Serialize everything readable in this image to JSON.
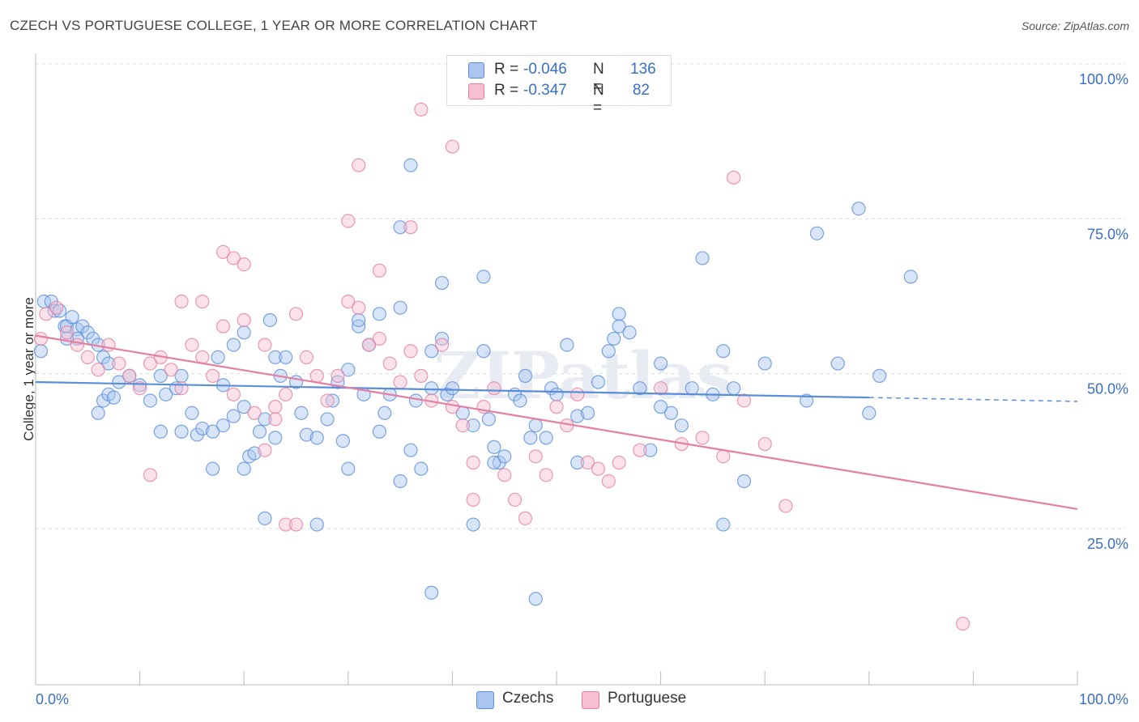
{
  "title": "CZECH VS PORTUGUESE COLLEGE, 1 YEAR OR MORE CORRELATION CHART",
  "source": "Source: ZipAtlas.com",
  "watermark": "ZIPatlas",
  "legend": {
    "r_label": "R =",
    "n_label": "N =",
    "rows": [
      {
        "r": "-0.046",
        "n": "136",
        "fill": "#a9c5f0",
        "stroke": "#5b8ed8"
      },
      {
        "r": "-0.347",
        "n": "82",
        "fill": "#f7bfd1",
        "stroke": "#e57fa2"
      }
    ]
  },
  "chart_data": {
    "type": "scatter",
    "title": "CZECH VS PORTUGUESE COLLEGE, 1 YEAR OR MORE CORRELATION CHART",
    "xlabel": "",
    "ylabel": "College, 1 year or more",
    "xlim": [
      0,
      100
    ],
    "ylim": [
      5,
      100
    ],
    "x_tick_labels": [
      "0.0%",
      "100.0%"
    ],
    "y_tick_labels": [
      "100.0%",
      "75.0%",
      "50.0%",
      "25.0%"
    ],
    "y_ticks": [
      100,
      75,
      50,
      25
    ],
    "grid": true,
    "legend_position": "top-center",
    "series": [
      {
        "name": "Czechs",
        "color": "#5b8ed8",
        "fill": "#a9c5f0",
        "trend": {
          "x": [
            0,
            80
          ],
          "y": [
            51.0,
            48.5
          ],
          "dashed_extension_to_x": 100
        },
        "points": [
          [
            0.5,
            56
          ],
          [
            0.8,
            64
          ],
          [
            1.5,
            64
          ],
          [
            1.8,
            62.5
          ],
          [
            2.3,
            62.5
          ],
          [
            2.8,
            60
          ],
          [
            3,
            60
          ],
          [
            3.5,
            61.5
          ],
          [
            4,
            59.5
          ],
          [
            4.5,
            60
          ],
          [
            5,
            59
          ],
          [
            5.5,
            58
          ],
          [
            6,
            57
          ],
          [
            6.5,
            55
          ],
          [
            7,
            54
          ],
          [
            4,
            58
          ],
          [
            3,
            58
          ],
          [
            6,
            46
          ],
          [
            6.5,
            48
          ],
          [
            7,
            49
          ],
          [
            7.5,
            48.5
          ],
          [
            8,
            51
          ],
          [
            9,
            52
          ],
          [
            10,
            50.5
          ],
          [
            11,
            48
          ],
          [
            12,
            43
          ],
          [
            12,
            52
          ],
          [
            12.5,
            49
          ],
          [
            13.5,
            50
          ],
          [
            14,
            52
          ],
          [
            15,
            46
          ],
          [
            15.5,
            42.5
          ],
          [
            16,
            43.5
          ],
          [
            17,
            43
          ],
          [
            17.5,
            55
          ],
          [
            18,
            50.5
          ],
          [
            18,
            44
          ],
          [
            19,
            45.5
          ],
          [
            19,
            57
          ],
          [
            20,
            47
          ],
          [
            20,
            59
          ],
          [
            20,
            37
          ],
          [
            20.5,
            39
          ],
          [
            21,
            39.5
          ],
          [
            21.5,
            43
          ],
          [
            22,
            45
          ],
          [
            22.5,
            61
          ],
          [
            23,
            55
          ],
          [
            23,
            42
          ],
          [
            23.5,
            52
          ],
          [
            24,
            55
          ],
          [
            25,
            51
          ],
          [
            25.5,
            46
          ],
          [
            26,
            42.5
          ],
          [
            27,
            42
          ],
          [
            28,
            45
          ],
          [
            28.5,
            48
          ],
          [
            29,
            51
          ],
          [
            29.5,
            41.5
          ],
          [
            30,
            53
          ],
          [
            31,
            60
          ],
          [
            31.5,
            49
          ],
          [
            32,
            57
          ],
          [
            33,
            43
          ],
          [
            33.5,
            46
          ],
          [
            34,
            49
          ],
          [
            35,
            63
          ],
          [
            35,
            35
          ],
          [
            36,
            40
          ],
          [
            36.5,
            48
          ],
          [
            37,
            37
          ],
          [
            38,
            50
          ],
          [
            38,
            56
          ],
          [
            39,
            58
          ],
          [
            39.5,
            49
          ],
          [
            40,
            50
          ],
          [
            41,
            46
          ],
          [
            42,
            44
          ],
          [
            43,
            56
          ],
          [
            43.5,
            45
          ],
          [
            44,
            40.5
          ],
          [
            44.5,
            38
          ],
          [
            45,
            39
          ],
          [
            46,
            49
          ],
          [
            46.5,
            48
          ],
          [
            47,
            52
          ],
          [
            47.5,
            42
          ],
          [
            48,
            44
          ],
          [
            49,
            42
          ],
          [
            49.5,
            50
          ],
          [
            50,
            49
          ],
          [
            51,
            57
          ],
          [
            52,
            45.5
          ],
          [
            53,
            46
          ],
          [
            54,
            51
          ],
          [
            55,
            56
          ],
          [
            55.5,
            58
          ],
          [
            56,
            60
          ],
          [
            57,
            59
          ],
          [
            58,
            50
          ],
          [
            59,
            40
          ],
          [
            60,
            54
          ],
          [
            61,
            46
          ],
          [
            62,
            44
          ],
          [
            63,
            50
          ],
          [
            64,
            71
          ],
          [
            65,
            49
          ],
          [
            66,
            56
          ],
          [
            67,
            50
          ],
          [
            68,
            35
          ],
          [
            70,
            54
          ],
          [
            74,
            48
          ],
          [
            75,
            75
          ],
          [
            77,
            54
          ],
          [
            79,
            79
          ],
          [
            80,
            46
          ],
          [
            81,
            52
          ],
          [
            84,
            68
          ],
          [
            14,
            43
          ],
          [
            17,
            37
          ],
          [
            22,
            29
          ],
          [
            27,
            28
          ],
          [
            30,
            37
          ],
          [
            31,
            61
          ],
          [
            33,
            62
          ],
          [
            36,
            86
          ],
          [
            39,
            67
          ],
          [
            42,
            28
          ],
          [
            43,
            68
          ],
          [
            48,
            16
          ],
          [
            38,
            17
          ],
          [
            35,
            76
          ],
          [
            60,
            47
          ],
          [
            66,
            28
          ],
          [
            44,
            38
          ],
          [
            52,
            38
          ],
          [
            56,
            62
          ]
        ]
      },
      {
        "name": "Portuguese",
        "color": "#e57fa2",
        "fill": "#f7bfd1",
        "trend": {
          "x": [
            0,
            100
          ],
          "y": [
            58.5,
            30.5
          ]
        },
        "points": [
          [
            0.5,
            58
          ],
          [
            1,
            62
          ],
          [
            2,
            63
          ],
          [
            3,
            59
          ],
          [
            4,
            57
          ],
          [
            5,
            55
          ],
          [
            6,
            53
          ],
          [
            7,
            57
          ],
          [
            8,
            54
          ],
          [
            9,
            52
          ],
          [
            10,
            50
          ],
          [
            11,
            54
          ],
          [
            12,
            55
          ],
          [
            13,
            53
          ],
          [
            14,
            50
          ],
          [
            15,
            57
          ],
          [
            16,
            55
          ],
          [
            17,
            52
          ],
          [
            18,
            60
          ],
          [
            19,
            49
          ],
          [
            20,
            61
          ],
          [
            21,
            46
          ],
          [
            22,
            57
          ],
          [
            23,
            47
          ],
          [
            24,
            49
          ],
          [
            25,
            62
          ],
          [
            26,
            55
          ],
          [
            27,
            52
          ],
          [
            28,
            48
          ],
          [
            29,
            52
          ],
          [
            30,
            64
          ],
          [
            31,
            63
          ],
          [
            32,
            57
          ],
          [
            33,
            58
          ],
          [
            34,
            54
          ],
          [
            35,
            51
          ],
          [
            36,
            56
          ],
          [
            37,
            52
          ],
          [
            38,
            48
          ],
          [
            39,
            57
          ],
          [
            40,
            47
          ],
          [
            41,
            44
          ],
          [
            42,
            38
          ],
          [
            43,
            47
          ],
          [
            44,
            50
          ],
          [
            45,
            36
          ],
          [
            46,
            32
          ],
          [
            47,
            29
          ],
          [
            48,
            39
          ],
          [
            49,
            36
          ],
          [
            50,
            47
          ],
          [
            51,
            44
          ],
          [
            52,
            49
          ],
          [
            53,
            38
          ],
          [
            54,
            37
          ],
          [
            55,
            35
          ],
          [
            56,
            38
          ],
          [
            58,
            40
          ],
          [
            60,
            50
          ],
          [
            62,
            41
          ],
          [
            64,
            42
          ],
          [
            66,
            39
          ],
          [
            68,
            48
          ],
          [
            70,
            41
          ],
          [
            14,
            64
          ],
          [
            16,
            64
          ],
          [
            18,
            72
          ],
          [
            19,
            71
          ],
          [
            20,
            70
          ],
          [
            22,
            40
          ],
          [
            23,
            45
          ],
          [
            24,
            28
          ],
          [
            25,
            28
          ],
          [
            30,
            77
          ],
          [
            31,
            86
          ],
          [
            33,
            69
          ],
          [
            36,
            76
          ],
          [
            37,
            95
          ],
          [
            40,
            89
          ],
          [
            42,
            32
          ],
          [
            11,
            36
          ],
          [
            67,
            84
          ],
          [
            72,
            31
          ],
          [
            89,
            12
          ]
        ]
      }
    ]
  },
  "bottom_legend": [
    {
      "label": "Czechs",
      "fill": "#a9c5f0",
      "stroke": "#5b8ed8"
    },
    {
      "label": "Portuguese",
      "fill": "#f7bfd1",
      "stroke": "#e57fa2"
    }
  ]
}
